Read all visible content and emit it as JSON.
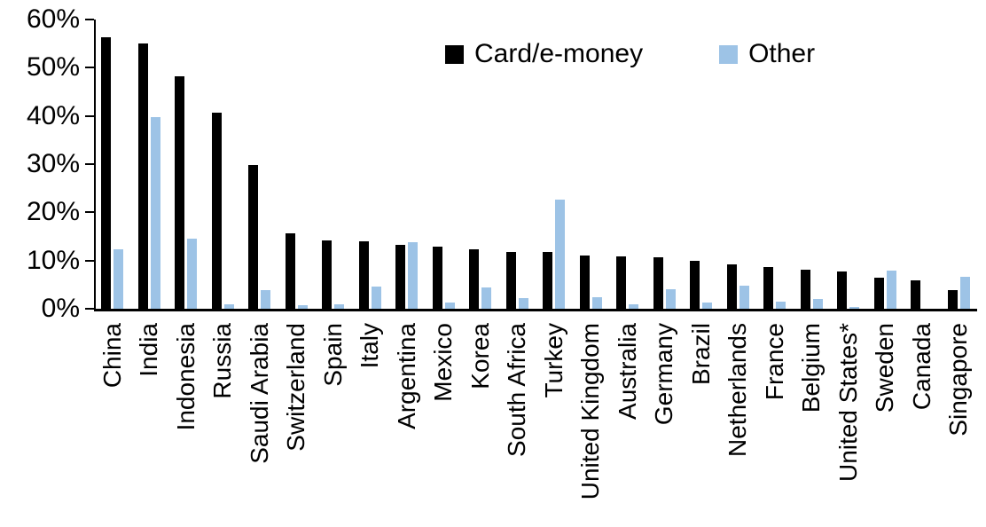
{
  "chart_data": {
    "type": "bar",
    "title": "",
    "xlabel": "",
    "ylabel": "",
    "categories": [
      "China",
      "India",
      "Indonesia",
      "Russia",
      "Saudi Arabia",
      "Switzerland",
      "Spain",
      "Italy",
      "Argentina",
      "Mexico",
      "Korea",
      "South Africa",
      "Turkey",
      "United Kingdom",
      "Australia",
      "Germany",
      "Brazil",
      "Netherlands",
      "France",
      "Belgium",
      "United States*",
      "Sweden",
      "Canada",
      "Singapore"
    ],
    "series": [
      {
        "name": "Card/e-money",
        "color": "#000000",
        "values": [
          56.3,
          55.1,
          48.3,
          40.6,
          29.9,
          15.6,
          14.2,
          14.0,
          13.3,
          12.8,
          12.3,
          11.8,
          11.7,
          11.1,
          10.8,
          10.6,
          9.9,
          9.2,
          8.6,
          8.1,
          7.8,
          6.5,
          5.9,
          3.9
        ]
      },
      {
        "name": "Other",
        "color": "#9DC3E6",
        "values": [
          12.3,
          39.7,
          14.5,
          1.0,
          3.9,
          0.8,
          1.0,
          4.6,
          13.8,
          1.3,
          4.5,
          2.3,
          22.6,
          2.4,
          1.0,
          4.0,
          1.2,
          4.8,
          1.5,
          2.0,
          0.3,
          7.9,
          0.0,
          6.7
        ]
      }
    ],
    "y_axis": {
      "min": 0,
      "max": 60,
      "step": 10,
      "tick_labels": [
        "0%",
        "10%",
        "20%",
        "30%",
        "40%",
        "50%",
        "60%"
      ]
    },
    "legend": {
      "position": "top-center",
      "labels": [
        "Card/e-money",
        "Other"
      ]
    },
    "grid": false,
    "axis_color": "#000000",
    "background": "#FFFFFF"
  }
}
